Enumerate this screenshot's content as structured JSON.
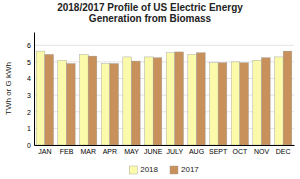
{
  "chart_data": {
    "type": "bar",
    "title": "2018/2017 Profile of US Electric Energy\nGeneration from Biomass",
    "categories": [
      "JAN",
      "FEB",
      "MAR",
      "APR",
      "MAY",
      "JUNE",
      "JULY",
      "AUG",
      "SEPT",
      "OCT",
      "NOV",
      "DEC"
    ],
    "series": [
      {
        "name": "2018",
        "color": "#FAFAAA",
        "values": [
          5.65,
          5.1,
          5.45,
          4.9,
          5.3,
          5.3,
          5.55,
          5.45,
          4.95,
          5.0,
          5.1,
          5.3
        ]
      },
      {
        "name": "2017",
        "color": "#C8905A",
        "values": [
          5.45,
          4.9,
          5.35,
          4.9,
          5.05,
          5.25,
          5.6,
          5.55,
          4.95,
          4.95,
          5.25,
          5.65
        ]
      }
    ],
    "ylabel": "TWh or G kWh",
    "ylim": [
      0,
      6.8
    ],
    "yticks": [
      0,
      1,
      2,
      3,
      4,
      5,
      6
    ],
    "grid": true,
    "legend": "bottom"
  }
}
